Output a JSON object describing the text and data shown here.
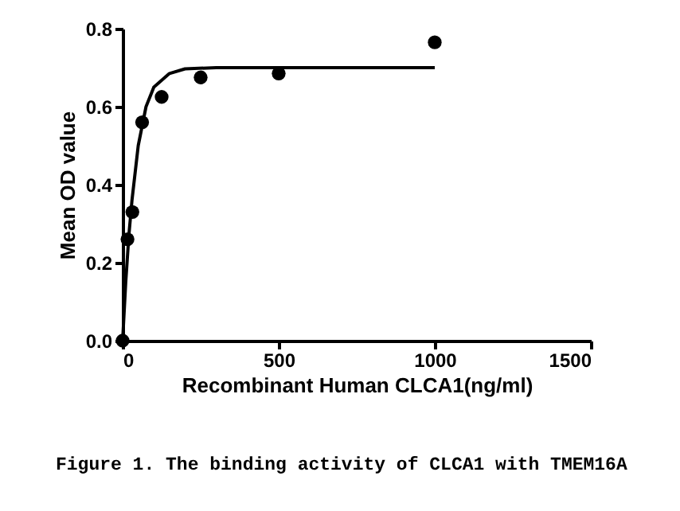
{
  "chart_data": {
    "type": "scatter",
    "xlabel": "Recombinant Human CLCA1(ng/ml)",
    "ylabel": "Mean OD value",
    "xlim": [
      0,
      1500
    ],
    "xticks": [
      0,
      500,
      1000,
      1500
    ],
    "ylim": [
      0,
      0.8
    ],
    "yticks": [
      {
        "value": 0,
        "label": "0.0"
      },
      0.2,
      0.4,
      0.6,
      0.8
    ],
    "grid": false,
    "series": [
      {
        "color": "#000000",
        "marker": "circle",
        "x": [
          0,
          15.6,
          31.25,
          62.5,
          125,
          250,
          500,
          1000
        ],
        "values": [
          0,
          0.26,
          0.33,
          0.56,
          0.625,
          0.675,
          0.685,
          0.765
        ]
      },
      {
        "type": "line",
        "color": "#000000",
        "marker": "none",
        "line_style": "solid",
        "x": [
          0,
          10,
          20,
          30,
          50,
          75,
          100,
          150,
          200,
          300,
          1000
        ],
        "values": [
          0,
          0.15,
          0.27,
          0.36,
          0.5,
          0.6,
          0.65,
          0.685,
          0.697,
          0.7,
          0.7
        ]
      }
    ],
    "annotations": [
      "Figure 1. The binding activity of CLCA1 with TMEM16A"
    ]
  }
}
